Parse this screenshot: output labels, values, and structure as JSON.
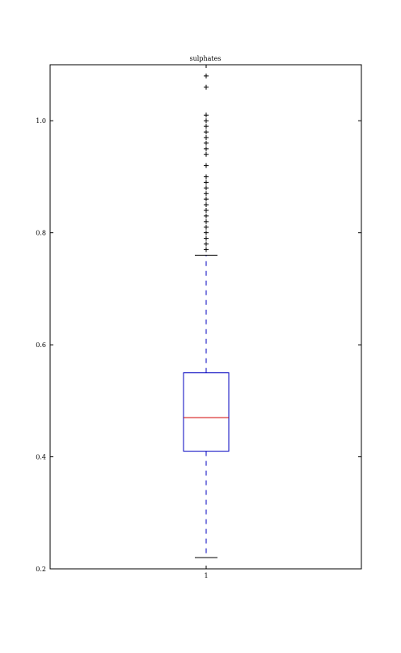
{
  "chart_data": {
    "type": "boxplot",
    "title": "sulphates",
    "xlabel": "",
    "ylabel": "",
    "ylim": [
      0.2,
      1.1
    ],
    "yticks": [
      "0.2",
      "0.4",
      "0.6",
      "0.8",
      "1.0"
    ],
    "categories": [
      "1"
    ],
    "box": {
      "category": "1",
      "whisker_low": 0.22,
      "q1": 0.41,
      "median": 0.47,
      "q3": 0.55,
      "whisker_high": 0.76,
      "outliers": [
        0.77,
        0.78,
        0.79,
        0.8,
        0.81,
        0.82,
        0.83,
        0.84,
        0.85,
        0.86,
        0.87,
        0.88,
        0.89,
        0.9,
        0.92,
        0.94,
        0.95,
        0.96,
        0.97,
        0.98,
        0.99,
        1.0,
        1.01,
        1.06,
        1.08
      ]
    },
    "colors": {
      "box": "#0000bf",
      "median": "#d00000",
      "whisker": "#0000bf",
      "caps": "#000000",
      "outliers": "#000000",
      "axes": "#000000"
    },
    "grid": false,
    "legend": "none"
  }
}
